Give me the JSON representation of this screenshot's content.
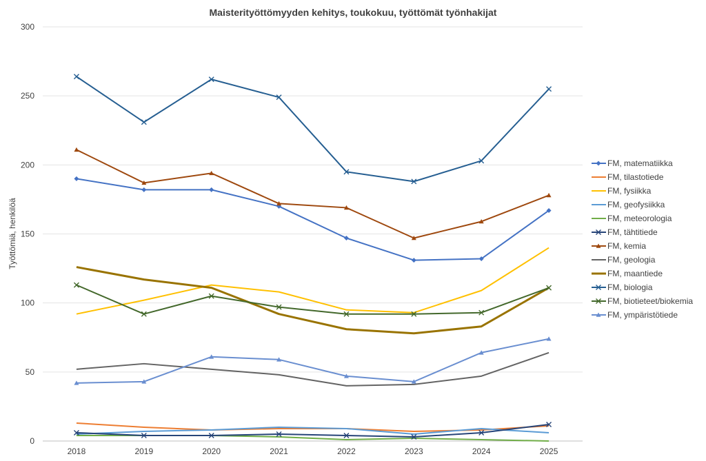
{
  "chart_data": {
    "type": "line",
    "title": "Maisterityöttömyyden kehitys, toukokuu, työttömät työnhakijat",
    "xlabel": "",
    "ylabel": "Työttömiä, henkilöä",
    "categories": [
      "2018",
      "2019",
      "2020",
      "2021",
      "2022",
      "2023",
      "2024",
      "2025"
    ],
    "ylim": [
      0,
      300
    ],
    "yticks": [
      "0",
      "50",
      "100",
      "150",
      "200",
      "250",
      "300"
    ],
    "grid": true,
    "legend_position": "right",
    "series": [
      {
        "name": "FM, matematiikka",
        "color": "#4472c4",
        "marker": "diamond",
        "width": 2,
        "values": [
          190,
          182,
          182,
          170,
          147,
          131,
          132,
          167
        ]
      },
      {
        "name": "FM, tilastotiede",
        "color": "#ed7d31",
        "marker": "none",
        "width": 2,
        "values": [
          13,
          10,
          8,
          9,
          9,
          7,
          8,
          11
        ]
      },
      {
        "name": "FM, fysiikka",
        "color": "#ffc000",
        "marker": "none",
        "width": 2,
        "values": [
          92,
          102,
          113,
          108,
          95,
          93,
          109,
          140
        ]
      },
      {
        "name": "FM, geofysiikka",
        "color": "#5b9bd5",
        "marker": "none",
        "width": 2,
        "values": [
          5,
          7,
          8,
          10,
          9,
          5,
          9,
          6
        ]
      },
      {
        "name": "FM, meteorologia",
        "color": "#70ad47",
        "marker": "none",
        "width": 2,
        "values": [
          4,
          4,
          4,
          3,
          1,
          2,
          1,
          0
        ]
      },
      {
        "name": "FM, tähtitiede",
        "color": "#264478",
        "marker": "x",
        "width": 2,
        "values": [
          6,
          4,
          4,
          5,
          4,
          3,
          6,
          12
        ]
      },
      {
        "name": "FM, kemia",
        "color": "#9e480e",
        "marker": "triangle",
        "width": 2,
        "values": [
          211,
          187,
          194,
          172,
          169,
          147,
          159,
          178
        ]
      },
      {
        "name": "FM, geologia",
        "color": "#636363",
        "marker": "none",
        "width": 2,
        "values": [
          52,
          56,
          52,
          48,
          40,
          41,
          47,
          64
        ]
      },
      {
        "name": "FM, maantiede",
        "color": "#997300",
        "marker": "none",
        "width": 3,
        "values": [
          126,
          117,
          111,
          92,
          81,
          78,
          83,
          111
        ]
      },
      {
        "name": "FM, biologia",
        "color": "#255e91",
        "marker": "x",
        "width": 2,
        "values": [
          264,
          231,
          262,
          249,
          195,
          188,
          203,
          255
        ]
      },
      {
        "name": "FM, biotieteet/biokemia",
        "color": "#43682b",
        "marker": "x",
        "width": 2,
        "values": [
          113,
          92,
          105,
          97,
          92,
          92,
          93,
          111
        ]
      },
      {
        "name": "FM, ympäristötiede",
        "color": "#698ed0",
        "marker": "triangle",
        "width": 2,
        "values": [
          42,
          43,
          61,
          59,
          47,
          43,
          64,
          74
        ]
      }
    ]
  }
}
